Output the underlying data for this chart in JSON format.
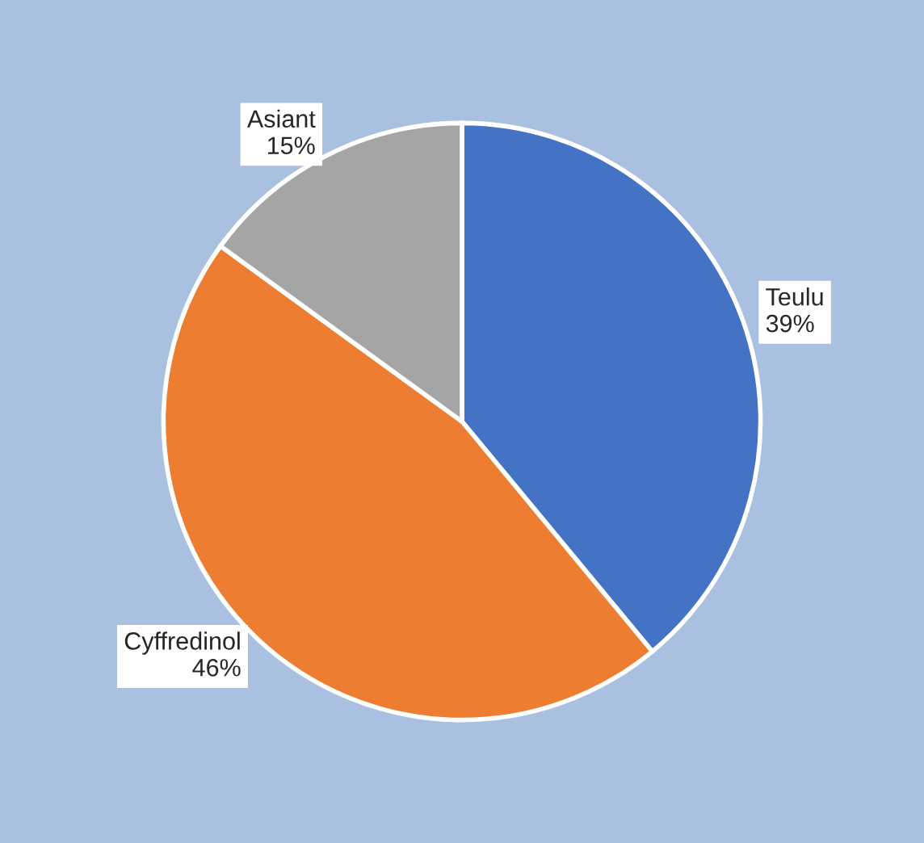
{
  "chart_data": {
    "type": "pie",
    "categories": [
      "Teulu",
      "Cyffredinol",
      "Asiant"
    ],
    "values": [
      39,
      46,
      15
    ],
    "value_labels": [
      "39%",
      "46%",
      "15%"
    ],
    "colors": [
      "#4472c4",
      "#ed7d31",
      "#a5a5a5"
    ],
    "legend": false
  }
}
